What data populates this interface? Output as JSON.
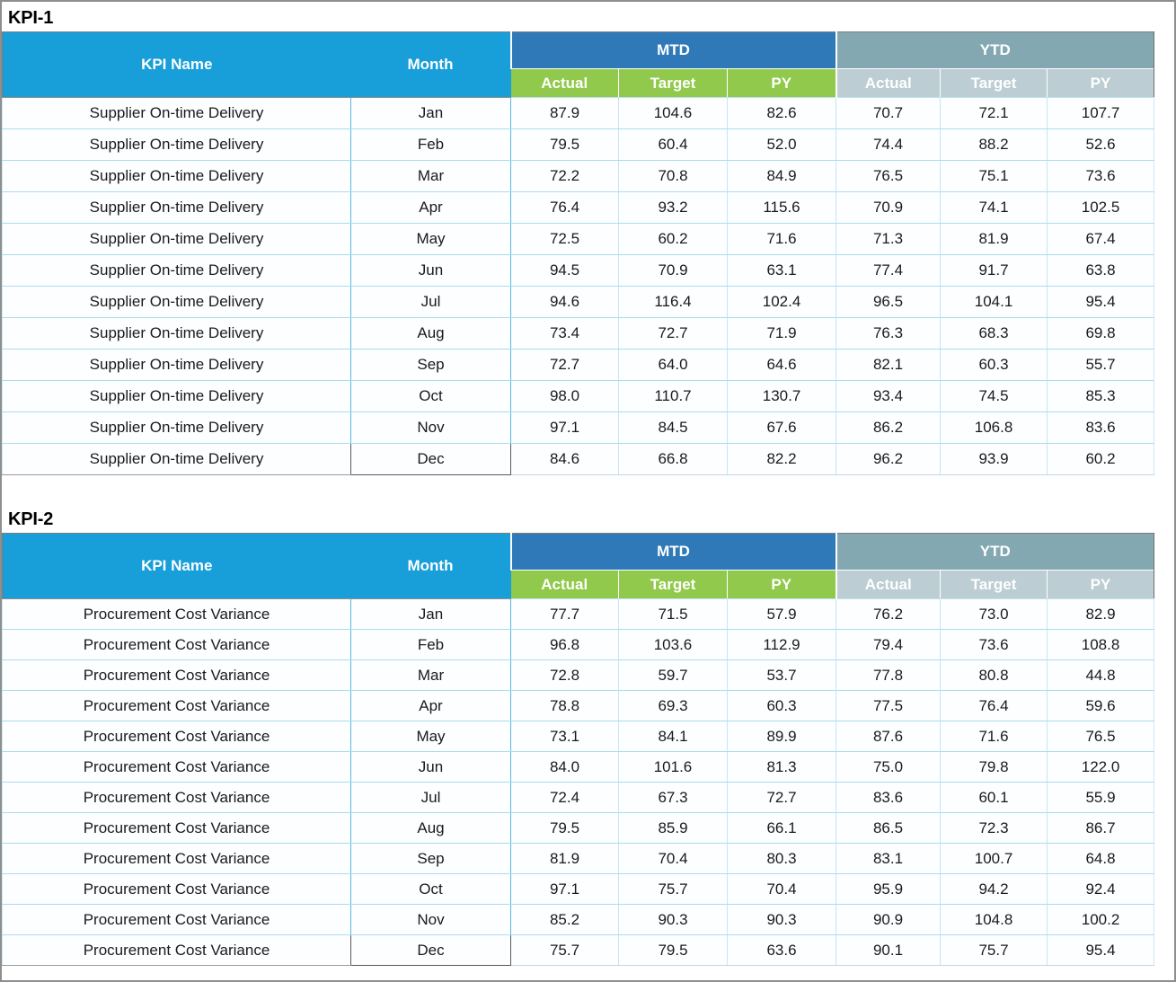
{
  "page": {
    "background": "#ffffff",
    "outer_border_color": "#8e8e8e"
  },
  "colors": {
    "kpi_header_cyan": "#189ED9",
    "mtd_header_blue": "#2F79B9",
    "mtd_subheader_green": "#90C94B",
    "ytd_header_gray": "#84A8B2",
    "ytd_subheader_gray": "#BCCDD3",
    "row_divider_cyan": "#ABDCEC",
    "month_column_border": "#56B8DA",
    "last_month_cell_border": "#595959",
    "header_text": "#ffffff",
    "body_text": "#1a1a1a"
  },
  "tables": [
    {
      "title": "KPI-1",
      "kpi_name": "Supplier On-time Delivery",
      "header": {
        "kpi_name_label": "KPI Name",
        "month_label": "Month",
        "mtd_label": "MTD",
        "ytd_label": "YTD",
        "sub_labels": [
          "Actual",
          "Target",
          "PY"
        ]
      },
      "rows": [
        {
          "month": "Jan",
          "mtd": [
            "87.9",
            "104.6",
            "82.6"
          ],
          "ytd": [
            "70.7",
            "72.1",
            "107.7"
          ]
        },
        {
          "month": "Feb",
          "mtd": [
            "79.5",
            "60.4",
            "52.0"
          ],
          "ytd": [
            "74.4",
            "88.2",
            "52.6"
          ]
        },
        {
          "month": "Mar",
          "mtd": [
            "72.2",
            "70.8",
            "84.9"
          ],
          "ytd": [
            "76.5",
            "75.1",
            "73.6"
          ]
        },
        {
          "month": "Apr",
          "mtd": [
            "76.4",
            "93.2",
            "115.6"
          ],
          "ytd": [
            "70.9",
            "74.1",
            "102.5"
          ]
        },
        {
          "month": "May",
          "mtd": [
            "72.5",
            "60.2",
            "71.6"
          ],
          "ytd": [
            "71.3",
            "81.9",
            "67.4"
          ]
        },
        {
          "month": "Jun",
          "mtd": [
            "94.5",
            "70.9",
            "63.1"
          ],
          "ytd": [
            "77.4",
            "91.7",
            "63.8"
          ]
        },
        {
          "month": "Jul",
          "mtd": [
            "94.6",
            "116.4",
            "102.4"
          ],
          "ytd": [
            "96.5",
            "104.1",
            "95.4"
          ]
        },
        {
          "month": "Aug",
          "mtd": [
            "73.4",
            "72.7",
            "71.9"
          ],
          "ytd": [
            "76.3",
            "68.3",
            "69.8"
          ]
        },
        {
          "month": "Sep",
          "mtd": [
            "72.7",
            "64.0",
            "64.6"
          ],
          "ytd": [
            "82.1",
            "60.3",
            "55.7"
          ]
        },
        {
          "month": "Oct",
          "mtd": [
            "98.0",
            "110.7",
            "130.7"
          ],
          "ytd": [
            "93.4",
            "74.5",
            "85.3"
          ]
        },
        {
          "month": "Nov",
          "mtd": [
            "97.1",
            "84.5",
            "67.6"
          ],
          "ytd": [
            "86.2",
            "106.8",
            "83.6"
          ]
        },
        {
          "month": "Dec",
          "mtd": [
            "84.6",
            "66.8",
            "82.2"
          ],
          "ytd": [
            "96.2",
            "93.9",
            "60.2"
          ]
        }
      ]
    },
    {
      "title": "KPI-2",
      "kpi_name": "Procurement Cost Variance",
      "header": {
        "kpi_name_label": "KPI Name",
        "month_label": "Month",
        "mtd_label": "MTD",
        "ytd_label": "YTD",
        "sub_labels": [
          "Actual",
          "Target",
          "PY"
        ]
      },
      "rows": [
        {
          "month": "Jan",
          "mtd": [
            "77.7",
            "71.5",
            "57.9"
          ],
          "ytd": [
            "76.2",
            "73.0",
            "82.9"
          ]
        },
        {
          "month": "Feb",
          "mtd": [
            "96.8",
            "103.6",
            "112.9"
          ],
          "ytd": [
            "79.4",
            "73.6",
            "108.8"
          ]
        },
        {
          "month": "Mar",
          "mtd": [
            "72.8",
            "59.7",
            "53.7"
          ],
          "ytd": [
            "77.8",
            "80.8",
            "44.8"
          ]
        },
        {
          "month": "Apr",
          "mtd": [
            "78.8",
            "69.3",
            "60.3"
          ],
          "ytd": [
            "77.5",
            "76.4",
            "59.6"
          ]
        },
        {
          "month": "May",
          "mtd": [
            "73.1",
            "84.1",
            "89.9"
          ],
          "ytd": [
            "87.6",
            "71.6",
            "76.5"
          ]
        },
        {
          "month": "Jun",
          "mtd": [
            "84.0",
            "101.6",
            "81.3"
          ],
          "ytd": [
            "75.0",
            "79.8",
            "122.0"
          ]
        },
        {
          "month": "Jul",
          "mtd": [
            "72.4",
            "67.3",
            "72.7"
          ],
          "ytd": [
            "83.6",
            "60.1",
            "55.9"
          ]
        },
        {
          "month": "Aug",
          "mtd": [
            "79.5",
            "85.9",
            "66.1"
          ],
          "ytd": [
            "86.5",
            "72.3",
            "86.7"
          ]
        },
        {
          "month": "Sep",
          "mtd": [
            "81.9",
            "70.4",
            "80.3"
          ],
          "ytd": [
            "83.1",
            "100.7",
            "64.8"
          ]
        },
        {
          "month": "Oct",
          "mtd": [
            "97.1",
            "75.7",
            "70.4"
          ],
          "ytd": [
            "95.9",
            "94.2",
            "92.4"
          ]
        },
        {
          "month": "Nov",
          "mtd": [
            "85.2",
            "90.3",
            "90.3"
          ],
          "ytd": [
            "90.9",
            "104.8",
            "100.2"
          ]
        },
        {
          "month": "Dec",
          "mtd": [
            "75.7",
            "79.5",
            "63.6"
          ],
          "ytd": [
            "90.1",
            "75.7",
            "95.4"
          ]
        }
      ]
    }
  ],
  "chart_data": [
    {
      "type": "table",
      "title": "KPI-1",
      "columns": [
        "KPI Name",
        "Month",
        "MTD Actual",
        "MTD Target",
        "MTD PY",
        "YTD Actual",
        "YTD Target",
        "YTD PY"
      ],
      "rows": [
        [
          "Supplier On-time Delivery",
          "Jan",
          87.9,
          104.6,
          82.6,
          70.7,
          72.1,
          107.7
        ],
        [
          "Supplier On-time Delivery",
          "Feb",
          79.5,
          60.4,
          52.0,
          74.4,
          88.2,
          52.6
        ],
        [
          "Supplier On-time Delivery",
          "Mar",
          72.2,
          70.8,
          84.9,
          76.5,
          75.1,
          73.6
        ],
        [
          "Supplier On-time Delivery",
          "Apr",
          76.4,
          93.2,
          115.6,
          70.9,
          74.1,
          102.5
        ],
        [
          "Supplier On-time Delivery",
          "May",
          72.5,
          60.2,
          71.6,
          71.3,
          81.9,
          67.4
        ],
        [
          "Supplier On-time Delivery",
          "Jun",
          94.5,
          70.9,
          63.1,
          77.4,
          91.7,
          63.8
        ],
        [
          "Supplier On-time Delivery",
          "Jul",
          94.6,
          116.4,
          102.4,
          96.5,
          104.1,
          95.4
        ],
        [
          "Supplier On-time Delivery",
          "Aug",
          73.4,
          72.7,
          71.9,
          76.3,
          68.3,
          69.8
        ],
        [
          "Supplier On-time Delivery",
          "Sep",
          72.7,
          64.0,
          64.6,
          82.1,
          60.3,
          55.7
        ],
        [
          "Supplier On-time Delivery",
          "Oct",
          98.0,
          110.7,
          130.7,
          93.4,
          74.5,
          85.3
        ],
        [
          "Supplier On-time Delivery",
          "Nov",
          97.1,
          84.5,
          67.6,
          86.2,
          106.8,
          83.6
        ],
        [
          "Supplier On-time Delivery",
          "Dec",
          84.6,
          66.8,
          82.2,
          96.2,
          93.9,
          60.2
        ]
      ]
    },
    {
      "type": "table",
      "title": "KPI-2",
      "columns": [
        "KPI Name",
        "Month",
        "MTD Actual",
        "MTD Target",
        "MTD PY",
        "YTD Actual",
        "YTD Target",
        "YTD PY"
      ],
      "rows": [
        [
          "Procurement Cost Variance",
          "Jan",
          77.7,
          71.5,
          57.9,
          76.2,
          73.0,
          82.9
        ],
        [
          "Procurement Cost Variance",
          "Feb",
          96.8,
          103.6,
          112.9,
          79.4,
          73.6,
          108.8
        ],
        [
          "Procurement Cost Variance",
          "Mar",
          72.8,
          59.7,
          53.7,
          77.8,
          80.8,
          44.8
        ],
        [
          "Procurement Cost Variance",
          "Apr",
          78.8,
          69.3,
          60.3,
          77.5,
          76.4,
          59.6
        ],
        [
          "Procurement Cost Variance",
          "May",
          73.1,
          84.1,
          89.9,
          87.6,
          71.6,
          76.5
        ],
        [
          "Procurement Cost Variance",
          "Jun",
          84.0,
          101.6,
          81.3,
          75.0,
          79.8,
          122.0
        ],
        [
          "Procurement Cost Variance",
          "Jul",
          72.4,
          67.3,
          72.7,
          83.6,
          60.1,
          55.9
        ],
        [
          "Procurement Cost Variance",
          "Aug",
          79.5,
          85.9,
          66.1,
          86.5,
          72.3,
          86.7
        ],
        [
          "Procurement Cost Variance",
          "Sep",
          81.9,
          70.4,
          80.3,
          83.1,
          100.7,
          64.8
        ],
        [
          "Procurement Cost Variance",
          "Oct",
          97.1,
          75.7,
          70.4,
          95.9,
          94.2,
          92.4
        ],
        [
          "Procurement Cost Variance",
          "Nov",
          85.2,
          90.3,
          90.3,
          90.9,
          104.8,
          100.2
        ],
        [
          "Procurement Cost Variance",
          "Dec",
          75.7,
          79.5,
          63.6,
          90.1,
          75.7,
          95.4
        ]
      ]
    }
  ]
}
